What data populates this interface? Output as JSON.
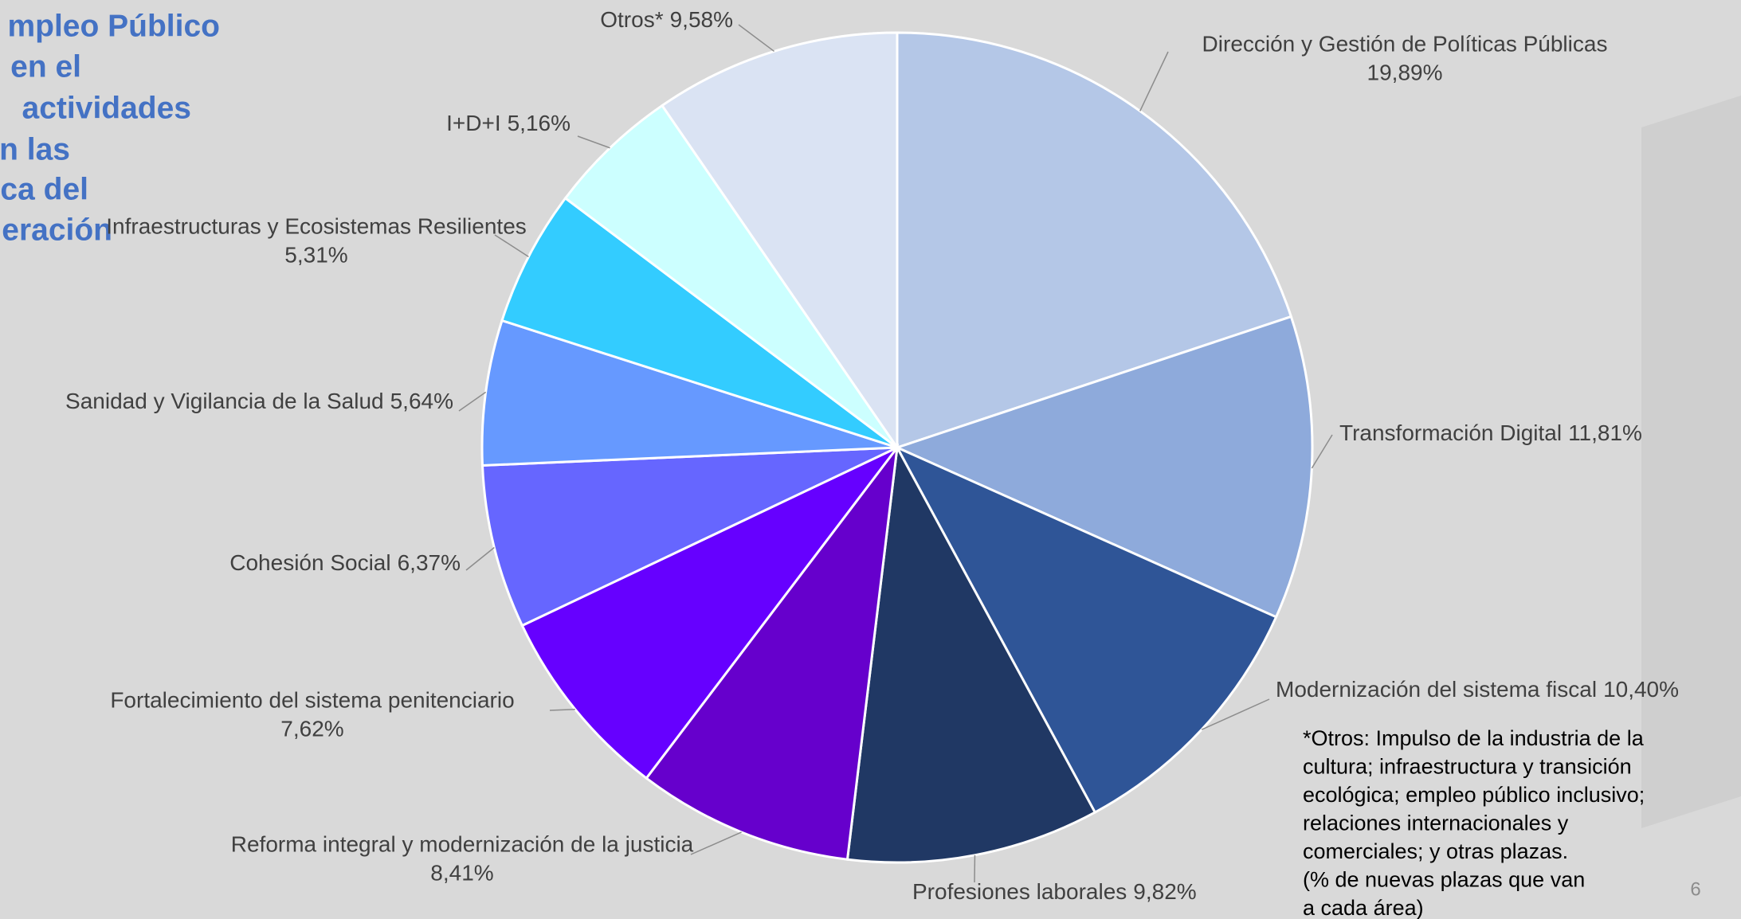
{
  "chart_data": {
    "type": "pie",
    "title": [
      "mpleo Público",
      "en el",
      "actividades",
      "n las",
      "ca del",
      "eración"
    ],
    "categories": [
      "Dirección y Gestión de Políticas Públicas",
      "Transformación Digital",
      "Modernización del sistema fiscal",
      "Profesiones laborales",
      "Reforma integral y modernización de la justicia",
      "Fortalecimiento del sistema penitenciario",
      "Cohesión Social",
      "Sanidad y Vigilancia de la Salud",
      "Infraestructuras y Ecosistemas Resilientes",
      "I+D+I",
      "Otros*"
    ],
    "values": [
      19.89,
      11.81,
      10.4,
      9.82,
      8.41,
      7.62,
      6.37,
      5.64,
      5.31,
      5.16,
      9.58
    ],
    "value_labels": [
      "19,89%",
      "11,81%",
      "10,40%",
      "9,82%",
      "8,41%",
      "7,62%",
      "6,37%",
      "5,64%",
      "5,31%",
      "5,16%",
      "9,58%"
    ],
    "colors": [
      "#b4c7e7",
      "#8eaadb",
      "#2f5597",
      "#203864",
      "#6600cc",
      "#6600ff",
      "#6666ff",
      "#6699ff",
      "#33ccff",
      "#ccffff",
      "#dae3f3"
    ],
    "footnote": [
      "*Otros: Impulso de la industria de la",
      "cultura; infraestructura y transición",
      "ecológica; empleo público inclusivo;",
      "relaciones internacionales y",
      "comerciales; y otras plazas.",
      "(% de nuevas plazas que van",
      "a cada área)"
    ],
    "page_number": "6"
  }
}
